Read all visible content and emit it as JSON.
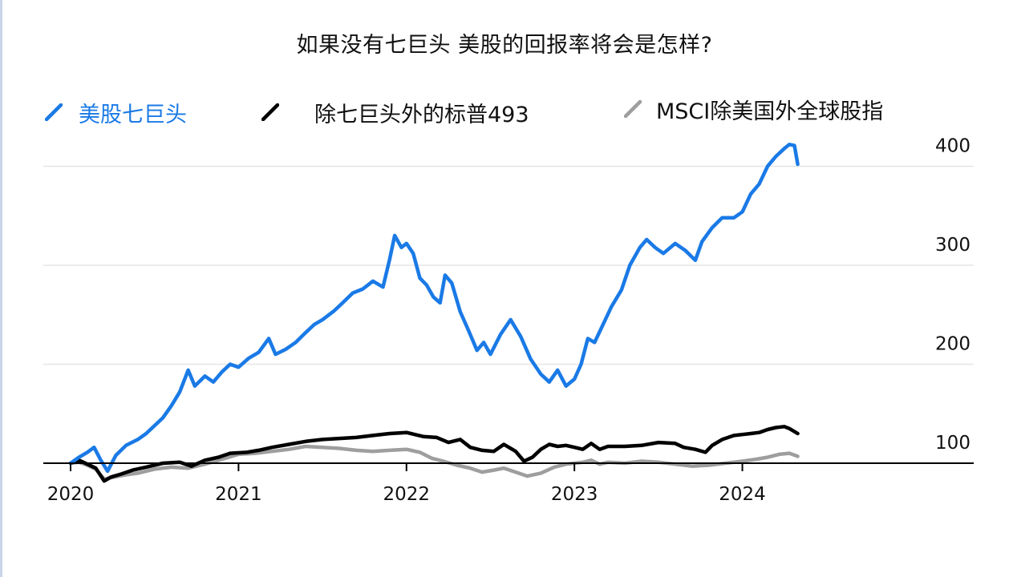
{
  "title": "如果没有七巨头 美股的回报率将会是怎样?",
  "legend": [
    {
      "label": "美股七巨头",
      "color": "#1a7ae6"
    },
    {
      "label": "除七巨头外的标普493",
      "color": "#000000"
    },
    {
      "label": "MSCI除美国外全球股指",
      "color": "#9e9e9e"
    }
  ],
  "chart_data": {
    "type": "line",
    "title": "如果没有七巨头 美股的回报率将会是怎样?",
    "xlabel": "",
    "ylabel": "",
    "xlim": [
      2020.0,
      2024.9
    ],
    "ylim": [
      100,
      420
    ],
    "x_ticks": [
      {
        "value": 2020,
        "label": "2020"
      },
      {
        "value": 2021,
        "label": "2021"
      },
      {
        "value": 2022,
        "label": "2022"
      },
      {
        "value": 2023,
        "label": "2023"
      },
      {
        "value": 2024,
        "label": "2024"
      }
    ],
    "y_ticks": [
      {
        "value": 100,
        "label": "100"
      },
      {
        "value": 200,
        "label": "200"
      },
      {
        "value": 300,
        "label": "300"
      },
      {
        "value": 400,
        "label": "400"
      }
    ],
    "grid": "horizontal",
    "legend_position": "top",
    "series": [
      {
        "name": "美股七巨头",
        "color": "#1a7ae6",
        "points": [
          [
            2020.0,
            100
          ],
          [
            2020.05,
            106
          ],
          [
            2020.1,
            111
          ],
          [
            2020.14,
            116
          ],
          [
            2020.18,
            103
          ],
          [
            2020.22,
            92
          ],
          [
            2020.27,
            108
          ],
          [
            2020.33,
            118
          ],
          [
            2020.4,
            124
          ],
          [
            2020.45,
            130
          ],
          [
            2020.5,
            138
          ],
          [
            2020.55,
            146
          ],
          [
            2020.6,
            158
          ],
          [
            2020.65,
            172
          ],
          [
            2020.7,
            194
          ],
          [
            2020.74,
            178
          ],
          [
            2020.8,
            188
          ],
          [
            2020.85,
            182
          ],
          [
            2020.9,
            192
          ],
          [
            2020.95,
            200
          ],
          [
            2021.0,
            197
          ],
          [
            2021.06,
            206
          ],
          [
            2021.12,
            212
          ],
          [
            2021.18,
            226
          ],
          [
            2021.22,
            210
          ],
          [
            2021.28,
            215
          ],
          [
            2021.34,
            222
          ],
          [
            2021.4,
            232
          ],
          [
            2021.45,
            240
          ],
          [
            2021.5,
            245
          ],
          [
            2021.57,
            254
          ],
          [
            2021.62,
            262
          ],
          [
            2021.68,
            272
          ],
          [
            2021.74,
            276
          ],
          [
            2021.8,
            284
          ],
          [
            2021.86,
            278
          ],
          [
            2021.9,
            306
          ],
          [
            2021.93,
            330
          ],
          [
            2021.97,
            318
          ],
          [
            2022.0,
            322
          ],
          [
            2022.04,
            312
          ],
          [
            2022.08,
            287
          ],
          [
            2022.12,
            280
          ],
          [
            2022.16,
            268
          ],
          [
            2022.2,
            262
          ],
          [
            2022.23,
            290
          ],
          [
            2022.27,
            282
          ],
          [
            2022.32,
            253
          ],
          [
            2022.37,
            234
          ],
          [
            2022.42,
            214
          ],
          [
            2022.46,
            222
          ],
          [
            2022.5,
            210
          ],
          [
            2022.56,
            230
          ],
          [
            2022.62,
            245
          ],
          [
            2022.68,
            228
          ],
          [
            2022.74,
            205
          ],
          [
            2022.8,
            190
          ],
          [
            2022.85,
            182
          ],
          [
            2022.9,
            194
          ],
          [
            2022.95,
            178
          ],
          [
            2023.0,
            185
          ],
          [
            2023.04,
            200
          ],
          [
            2023.08,
            226
          ],
          [
            2023.12,
            222
          ],
          [
            2023.17,
            240
          ],
          [
            2023.22,
            258
          ],
          [
            2023.28,
            275
          ],
          [
            2023.33,
            300
          ],
          [
            2023.39,
            318
          ],
          [
            2023.43,
            326
          ],
          [
            2023.48,
            318
          ],
          [
            2023.53,
            312
          ],
          [
            2023.6,
            322
          ],
          [
            2023.66,
            315
          ],
          [
            2023.72,
            305
          ],
          [
            2023.76,
            324
          ],
          [
            2023.82,
            338
          ],
          [
            2023.88,
            348
          ],
          [
            2023.95,
            348
          ],
          [
            2024.0,
            354
          ],
          [
            2024.05,
            372
          ],
          [
            2024.1,
            382
          ],
          [
            2024.15,
            400
          ],
          [
            2024.2,
            410
          ],
          [
            2024.25,
            418
          ],
          [
            2024.28,
            422
          ],
          [
            2024.31,
            421
          ],
          [
            2024.33,
            402
          ]
        ]
      },
      {
        "name": "除七巨头外的标普493",
        "color": "#000000",
        "points": [
          [
            2020.0,
            100
          ],
          [
            2020.05,
            103
          ],
          [
            2020.1,
            99
          ],
          [
            2020.15,
            95
          ],
          [
            2020.2,
            82
          ],
          [
            2020.24,
            86
          ],
          [
            2020.3,
            89
          ],
          [
            2020.37,
            93
          ],
          [
            2020.45,
            96
          ],
          [
            2020.55,
            100
          ],
          [
            2020.65,
            101
          ],
          [
            2020.72,
            97
          ],
          [
            2020.8,
            103
          ],
          [
            2020.88,
            106
          ],
          [
            2020.95,
            110
          ],
          [
            2021.05,
            111
          ],
          [
            2021.12,
            113
          ],
          [
            2021.2,
            116
          ],
          [
            2021.3,
            119
          ],
          [
            2021.4,
            122
          ],
          [
            2021.5,
            124
          ],
          [
            2021.6,
            125
          ],
          [
            2021.7,
            126
          ],
          [
            2021.8,
            128
          ],
          [
            2021.9,
            130
          ],
          [
            2022.0,
            131
          ],
          [
            2022.05,
            129
          ],
          [
            2022.1,
            127
          ],
          [
            2022.18,
            126
          ],
          [
            2022.25,
            121
          ],
          [
            2022.32,
            124
          ],
          [
            2022.38,
            116
          ],
          [
            2022.45,
            113
          ],
          [
            2022.52,
            112
          ],
          [
            2022.58,
            119
          ],
          [
            2022.65,
            112
          ],
          [
            2022.7,
            102
          ],
          [
            2022.75,
            106
          ],
          [
            2022.8,
            114
          ],
          [
            2022.85,
            119
          ],
          [
            2022.9,
            117
          ],
          [
            2022.95,
            118
          ],
          [
            2023.0,
            116
          ],
          [
            2023.05,
            114
          ],
          [
            2023.1,
            120
          ],
          [
            2023.15,
            114
          ],
          [
            2023.2,
            117
          ],
          [
            2023.3,
            117
          ],
          [
            2023.4,
            118
          ],
          [
            2023.5,
            121
          ],
          [
            2023.6,
            120
          ],
          [
            2023.65,
            116
          ],
          [
            2023.72,
            114
          ],
          [
            2023.78,
            111
          ],
          [
            2023.82,
            118
          ],
          [
            2023.88,
            124
          ],
          [
            2023.95,
            128
          ],
          [
            2024.0,
            129
          ],
          [
            2024.05,
            130
          ],
          [
            2024.1,
            131
          ],
          [
            2024.15,
            134
          ],
          [
            2024.2,
            136
          ],
          [
            2024.25,
            137
          ],
          [
            2024.28,
            135
          ],
          [
            2024.33,
            130
          ]
        ]
      },
      {
        "name": "MSCI除美国外全球股指",
        "color": "#9e9e9e",
        "points": [
          [
            2020.0,
            100
          ],
          [
            2020.05,
            101
          ],
          [
            2020.1,
            98
          ],
          [
            2020.15,
            94
          ],
          [
            2020.2,
            84
          ],
          [
            2020.26,
            86
          ],
          [
            2020.32,
            88
          ],
          [
            2020.4,
            90
          ],
          [
            2020.5,
            94
          ],
          [
            2020.6,
            96
          ],
          [
            2020.7,
            95
          ],
          [
            2020.8,
            99
          ],
          [
            2020.9,
            104
          ],
          [
            2021.0,
            109
          ],
          [
            2021.1,
            110
          ],
          [
            2021.2,
            112
          ],
          [
            2021.3,
            114
          ],
          [
            2021.4,
            117
          ],
          [
            2021.5,
            116
          ],
          [
            2021.6,
            115
          ],
          [
            2021.7,
            113
          ],
          [
            2021.8,
            112
          ],
          [
            2021.9,
            113
          ],
          [
            2022.0,
            114
          ],
          [
            2022.08,
            111
          ],
          [
            2022.15,
            105
          ],
          [
            2022.22,
            102
          ],
          [
            2022.3,
            98
          ],
          [
            2022.38,
            95
          ],
          [
            2022.45,
            91
          ],
          [
            2022.52,
            93
          ],
          [
            2022.58,
            95
          ],
          [
            2022.65,
            91
          ],
          [
            2022.72,
            87
          ],
          [
            2022.8,
            90
          ],
          [
            2022.88,
            96
          ],
          [
            2022.95,
            99
          ],
          [
            2023.0,
            100
          ],
          [
            2023.05,
            101
          ],
          [
            2023.1,
            103
          ],
          [
            2023.15,
            99
          ],
          [
            2023.2,
            101
          ],
          [
            2023.3,
            100
          ],
          [
            2023.4,
            102
          ],
          [
            2023.5,
            101
          ],
          [
            2023.6,
            99
          ],
          [
            2023.7,
            97
          ],
          [
            2023.8,
            98
          ],
          [
            2023.9,
            100
          ],
          [
            2024.0,
            102
          ],
          [
            2024.08,
            104
          ],
          [
            2024.15,
            106
          ],
          [
            2024.22,
            109
          ],
          [
            2024.28,
            110
          ],
          [
            2024.33,
            107
          ]
        ]
      }
    ]
  }
}
